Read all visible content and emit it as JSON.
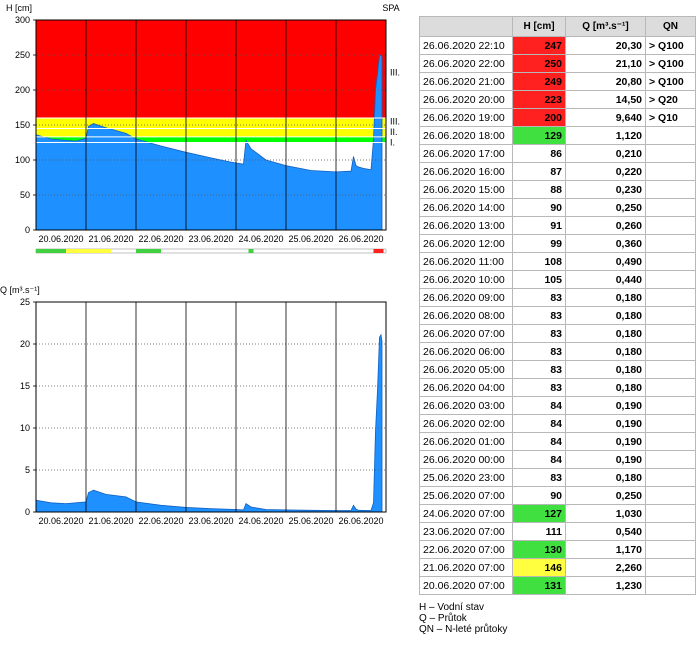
{
  "chart_data": [
    {
      "type": "area",
      "ylabel": "H [cm]",
      "station": "SPA",
      "ylim": [
        0,
        300
      ],
      "yticks": [
        0,
        50,
        100,
        150,
        200,
        250,
        300
      ],
      "x_labels": [
        "20.06.2020",
        "21.06.2020",
        "22.06.2020",
        "23.06.2020",
        "24.06.2020",
        "25.06.2020",
        "26.06.2020"
      ],
      "x_range_days": [
        0,
        7
      ],
      "bands": [
        {
          "level": "I.",
          "from": 125,
          "to": 133,
          "color": "#00ff00"
        },
        {
          "level": "II.",
          "from": 133,
          "to": 145,
          "color": "#ffff00"
        },
        {
          "level": "III.",
          "from": 145,
          "to": 160,
          "color": "#ffff00"
        },
        {
          "level": "III.!",
          "from": 160,
          "to": 300,
          "color": "#ff0000"
        }
      ],
      "level_labels": [
        {
          "label": "III.!",
          "value": 225
        },
        {
          "label": "III.",
          "value": 155
        },
        {
          "label": "II.",
          "value": 140
        },
        {
          "label": "I.",
          "value": 125
        }
      ],
      "series_color": "#1e90ff",
      "x": [
        0,
        0.3,
        0.6,
        0.8,
        1.0,
        1.05,
        1.15,
        1.4,
        1.8,
        2.0,
        2.5,
        3.0,
        3.5,
        3.9,
        4.15,
        4.2,
        4.3,
        4.6,
        5.0,
        5.5,
        6.0,
        6.3,
        6.35,
        6.4,
        6.45,
        6.55,
        6.7,
        6.75,
        6.79,
        6.83,
        6.87,
        6.9,
        6.92
      ],
      "values": [
        136,
        130,
        128,
        127,
        131,
        148,
        152,
        146,
        138,
        130,
        120,
        111,
        103,
        97,
        94,
        128,
        116,
        100,
        92,
        85,
        83,
        84,
        105,
        92,
        90,
        88,
        86,
        129,
        200,
        223,
        249,
        250,
        247
      ],
      "status_bar": [
        {
          "from": 0,
          "to": 0.6,
          "color": "#40d040"
        },
        {
          "from": 0.6,
          "to": 1.1,
          "color": "#ffff40"
        },
        {
          "from": 1.1,
          "to": 1.5,
          "color": "#ffff40"
        },
        {
          "from": 2.0,
          "to": 2.5,
          "color": "#40d040"
        },
        {
          "from": 4.25,
          "to": 4.35,
          "color": "#40d040"
        },
        {
          "from": 6.75,
          "to": 6.95,
          "color": "#ff2020"
        }
      ]
    },
    {
      "type": "area",
      "ylabel": "Q [m³.s⁻¹]",
      "ylim": [
        0,
        25
      ],
      "yticks": [
        0,
        5,
        10,
        15,
        20,
        25
      ],
      "x_labels": [
        "20.06.2020",
        "21.06.2020",
        "22.06.2020",
        "23.06.2020",
        "24.06.2020",
        "25.06.2020",
        "26.06.2020"
      ],
      "x_range_days": [
        0,
        7
      ],
      "series_color": "#1e90ff",
      "x": [
        0,
        0.3,
        0.6,
        1.0,
        1.05,
        1.15,
        1.4,
        1.8,
        2.0,
        2.5,
        3.0,
        3.5,
        4.0,
        4.15,
        4.2,
        4.3,
        4.6,
        5.0,
        5.5,
        6.0,
        6.3,
        6.35,
        6.4,
        6.45,
        6.55,
        6.7,
        6.75,
        6.79,
        6.83,
        6.87,
        6.9,
        6.92
      ],
      "values": [
        1.4,
        1.1,
        1.0,
        1.2,
        2.3,
        2.6,
        2.1,
        1.8,
        1.2,
        0.8,
        0.55,
        0.4,
        0.3,
        0.25,
        1.0,
        0.6,
        0.3,
        0.25,
        0.2,
        0.18,
        0.18,
        0.8,
        0.35,
        0.2,
        0.19,
        0.18,
        1.1,
        9.6,
        14.5,
        20.8,
        21.1,
        20.3
      ]
    }
  ],
  "table": {
    "headers": {
      "date": "",
      "h": "H [cm]",
      "q": "Q [m³.s⁻¹]",
      "n": "QN"
    },
    "rows": [
      {
        "date": "26.06.2020 22:10",
        "h": "247",
        "q": "20,30",
        "n": "> Q100",
        "status": "red"
      },
      {
        "date": "26.06.2020 22:00",
        "h": "250",
        "q": "21,10",
        "n": "> Q100",
        "status": "red"
      },
      {
        "date": "26.06.2020 21:00",
        "h": "249",
        "q": "20,80",
        "n": "> Q100",
        "status": "red"
      },
      {
        "date": "26.06.2020 20:00",
        "h": "223",
        "q": "14,50",
        "n": "> Q20",
        "status": "red"
      },
      {
        "date": "26.06.2020 19:00",
        "h": "200",
        "q": "9,640",
        "n": "> Q10",
        "status": "red"
      },
      {
        "date": "26.06.2020 18:00",
        "h": "129",
        "q": "1,120",
        "n": "",
        "status": "green"
      },
      {
        "date": "26.06.2020 17:00",
        "h": "86",
        "q": "0,210",
        "n": "",
        "status": ""
      },
      {
        "date": "26.06.2020 16:00",
        "h": "87",
        "q": "0,220",
        "n": "",
        "status": ""
      },
      {
        "date": "26.06.2020 15:00",
        "h": "88",
        "q": "0,230",
        "n": "",
        "status": ""
      },
      {
        "date": "26.06.2020 14:00",
        "h": "90",
        "q": "0,250",
        "n": "",
        "status": ""
      },
      {
        "date": "26.06.2020 13:00",
        "h": "91",
        "q": "0,260",
        "n": "",
        "status": ""
      },
      {
        "date": "26.06.2020 12:00",
        "h": "99",
        "q": "0,360",
        "n": "",
        "status": ""
      },
      {
        "date": "26.06.2020 11:00",
        "h": "108",
        "q": "0,490",
        "n": "",
        "status": ""
      },
      {
        "date": "26.06.2020 10:00",
        "h": "105",
        "q": "0,440",
        "n": "",
        "status": ""
      },
      {
        "date": "26.06.2020 09:00",
        "h": "83",
        "q": "0,180",
        "n": "",
        "status": ""
      },
      {
        "date": "26.06.2020 08:00",
        "h": "83",
        "q": "0,180",
        "n": "",
        "status": ""
      },
      {
        "date": "26.06.2020 07:00",
        "h": "83",
        "q": "0,180",
        "n": "",
        "status": ""
      },
      {
        "date": "26.06.2020 06:00",
        "h": "83",
        "q": "0,180",
        "n": "",
        "status": ""
      },
      {
        "date": "26.06.2020 05:00",
        "h": "83",
        "q": "0,180",
        "n": "",
        "status": ""
      },
      {
        "date": "26.06.2020 04:00",
        "h": "83",
        "q": "0,180",
        "n": "",
        "status": ""
      },
      {
        "date": "26.06.2020 03:00",
        "h": "84",
        "q": "0,190",
        "n": "",
        "status": ""
      },
      {
        "date": "26.06.2020 02:00",
        "h": "84",
        "q": "0,190",
        "n": "",
        "status": ""
      },
      {
        "date": "26.06.2020 01:00",
        "h": "84",
        "q": "0,190",
        "n": "",
        "status": ""
      },
      {
        "date": "26.06.2020 00:00",
        "h": "84",
        "q": "0,190",
        "n": "",
        "status": ""
      },
      {
        "date": "25.06.2020 23:00",
        "h": "83",
        "q": "0,180",
        "n": "",
        "status": ""
      },
      {
        "date": "25.06.2020 07:00",
        "h": "90",
        "q": "0,250",
        "n": "",
        "status": ""
      },
      {
        "date": "24.06.2020 07:00",
        "h": "127",
        "q": "1,030",
        "n": "",
        "status": "green"
      },
      {
        "date": "23.06.2020 07:00",
        "h": "111",
        "q": "0,540",
        "n": "",
        "status": ""
      },
      {
        "date": "22.06.2020 07:00",
        "h": "130",
        "q": "1,170",
        "n": "",
        "status": "green"
      },
      {
        "date": "21.06.2020 07:00",
        "h": "146",
        "q": "2,260",
        "n": "",
        "status": "yellow"
      },
      {
        "date": "20.06.2020 07:00",
        "h": "131",
        "q": "1,230",
        "n": "",
        "status": "green"
      }
    ]
  },
  "legend": {
    "h": "H – Vodní stav",
    "q": "Q – Průtok",
    "n": "QN – N-leté průtoky"
  }
}
